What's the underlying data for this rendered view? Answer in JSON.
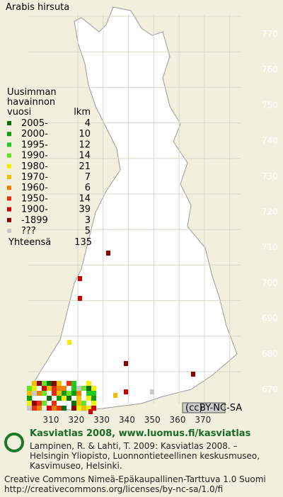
{
  "title": "Arabis hirsuta",
  "legend": {
    "heading": [
      "Uusimman",
      "havainnon",
      "vuosi"
    ],
    "count_heading": "lkm",
    "entries": [
      {
        "label": "2005-",
        "count": 4,
        "color": "#0a6e0a"
      },
      {
        "label": "2000-",
        "count": 10,
        "color": "#109a10"
      },
      {
        "label": "1995-",
        "count": 12,
        "color": "#22c822"
      },
      {
        "label": "1990-",
        "count": 14,
        "color": "#66e622"
      },
      {
        "label": "1980-",
        "count": 21,
        "color": "#f0f000"
      },
      {
        "label": "1970-",
        "count": 7,
        "color": "#f0c000"
      },
      {
        "label": "1960-",
        "count": 6,
        "color": "#f08000"
      },
      {
        "label": "1950-",
        "count": 14,
        "color": "#e83010"
      },
      {
        "label": "1900-",
        "count": 39,
        "color": "#d00000"
      },
      {
        "label": "-1899",
        "count": 3,
        "color": "#8a0000"
      },
      {
        "label": "???",
        "count": 5,
        "color": "#c8c8c8"
      }
    ],
    "total_label": "Yhteensä",
    "total": 135
  },
  "grid": {
    "x_labels": [
      310,
      320,
      330,
      340,
      350,
      360,
      370
    ],
    "y_labels": [
      670,
      680,
      690,
      700,
      710,
      720,
      730,
      740,
      750,
      760,
      770
    ]
  },
  "cc_badge": "BY-NC-SA",
  "footer": {
    "site": "Kasviatlas 2008, www.luomus.fi/kasviatlas",
    "citation": [
      "Lampinen, R. & Lahti, T. 2009: Kasviatlas 2008. –",
      "Helsingin Yliopisto, Luonnontieteellinen keskusmuseo,",
      "Kasvimuseo, Helsinki."
    ],
    "license": "Creative Commons Nimeä-Epäkaupallinen-Tarttuva 1.0 Suomi",
    "license_url": "http://creativecommons.org/licenses/by-nc-sa/1.0/fi"
  }
}
